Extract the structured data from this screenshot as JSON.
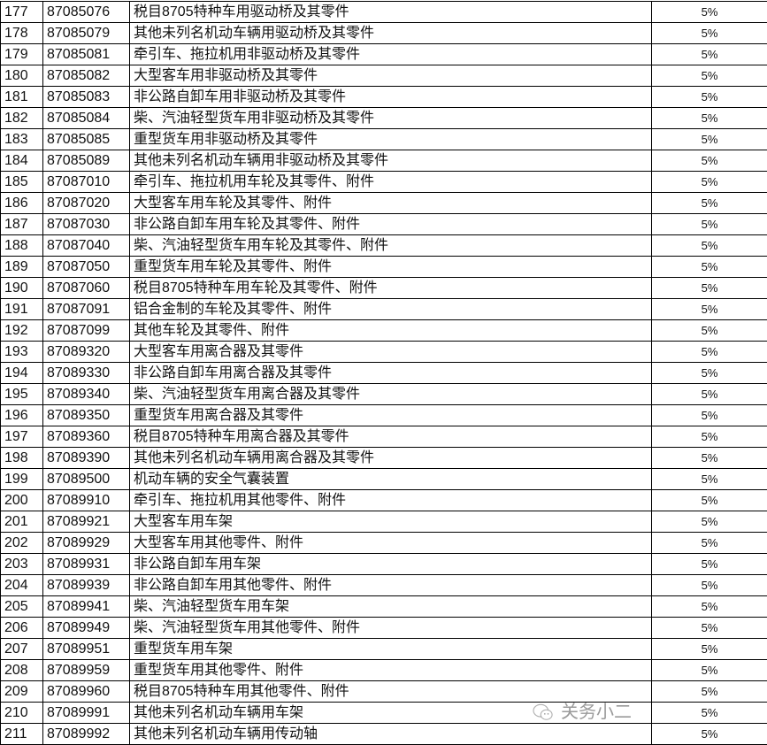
{
  "rows": [
    [
      "177",
      "87085076",
      "税目8705特种车用驱动桥及其零件",
      "5%"
    ],
    [
      "178",
      "87085079",
      "其他未列名机动车辆用驱动桥及其零件",
      "5%"
    ],
    [
      "179",
      "87085081",
      "牵引车、拖拉机用非驱动桥及其零件",
      "5%"
    ],
    [
      "180",
      "87085082",
      "大型客车用非驱动桥及其零件",
      "5%"
    ],
    [
      "181",
      "87085083",
      "非公路自卸车用非驱动桥及其零件",
      "5%"
    ],
    [
      "182",
      "87085084",
      "柴、汽油轻型货车用非驱动桥及其零件",
      "5%"
    ],
    [
      "183",
      "87085085",
      "重型货车用非驱动桥及其零件",
      "5%"
    ],
    [
      "184",
      "87085089",
      "其他未列名机动车辆用非驱动桥及其零件",
      "5%"
    ],
    [
      "185",
      "87087010",
      "牵引车、拖拉机用车轮及其零件、附件",
      "5%"
    ],
    [
      "186",
      "87087020",
      "大型客车用车轮及其零件、附件",
      "5%"
    ],
    [
      "187",
      "87087030",
      "非公路自卸车用车轮及其零件、附件",
      "5%"
    ],
    [
      "188",
      "87087040",
      "柴、汽油轻型货车用车轮及其零件、附件",
      "5%"
    ],
    [
      "189",
      "87087050",
      "重型货车用车轮及其零件、附件",
      "5%"
    ],
    [
      "190",
      "87087060",
      "税目8705特种车用车轮及其零件、附件",
      "5%"
    ],
    [
      "191",
      "87087091",
      "铝合金制的车轮及其零件、附件",
      "5%"
    ],
    [
      "192",
      "87087099",
      "其他车轮及其零件、附件",
      "5%"
    ],
    [
      "193",
      "87089320",
      "大型客车用离合器及其零件",
      "5%"
    ],
    [
      "194",
      "87089330",
      "非公路自卸车用离合器及其零件",
      "5%"
    ],
    [
      "195",
      "87089340",
      "柴、汽油轻型货车用离合器及其零件",
      "5%"
    ],
    [
      "196",
      "87089350",
      "重型货车用离合器及其零件",
      "5%"
    ],
    [
      "197",
      "87089360",
      "税目8705特种车用离合器及其零件",
      "5%"
    ],
    [
      "198",
      "87089390",
      "其他未列名机动车辆用离合器及其零件",
      "5%"
    ],
    [
      "199",
      "87089500",
      "机动车辆的安全气囊装置",
      "5%"
    ],
    [
      "200",
      "87089910",
      "牵引车、拖拉机用其他零件、附件",
      "5%"
    ],
    [
      "201",
      "87089921",
      "大型客车用车架",
      "5%"
    ],
    [
      "202",
      "87089929",
      "大型客车用其他零件、附件",
      "5%"
    ],
    [
      "203",
      "87089931",
      "非公路自卸车用车架",
      "5%"
    ],
    [
      "204",
      "87089939",
      "非公路自卸车用其他零件、附件",
      "5%"
    ],
    [
      "205",
      "87089941",
      "柴、汽油轻型货车用车架",
      "5%"
    ],
    [
      "206",
      "87089949",
      "柴、汽油轻型货车用其他零件、附件",
      "5%"
    ],
    [
      "207",
      "87089951",
      "重型货车用车架",
      "5%"
    ],
    [
      "208",
      "87089959",
      "重型货车用其他零件、附件",
      "5%"
    ],
    [
      "209",
      "87089960",
      "税目8705特种车用其他零件、附件",
      "5%"
    ],
    [
      "210",
      "87089991",
      "其他未列名机动车辆用车架",
      "5%"
    ],
    [
      "211",
      "87089992",
      "其他未列名机动车辆用传动轴",
      "5%"
    ]
  ],
  "watermark": {
    "text": "关务小二",
    "icon": "wechat-icon"
  }
}
